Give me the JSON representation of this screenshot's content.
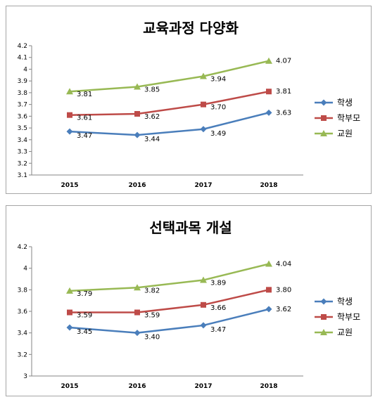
{
  "chart_data": [
    {
      "type": "line",
      "title": "교육과정 다양화",
      "xlabel": "",
      "ylabel": "",
      "x": [
        "2015",
        "2016",
        "2017",
        "2018"
      ],
      "ylim": [
        3.1,
        4.2
      ],
      "yticks": [
        "3.1",
        "3.2",
        "3.3",
        "3.4",
        "3.5",
        "3.6",
        "3.7",
        "3.8",
        "3.9",
        "4",
        "4.1",
        "4.2"
      ],
      "grid": false,
      "legend_position": "right",
      "series": [
        {
          "name": "학생",
          "color": "#4a7ebb",
          "marker": "diamond",
          "values": [
            3.47,
            3.44,
            3.49,
            3.63
          ],
          "labels": [
            "3.47",
            "3.44",
            "3.49",
            "3.63"
          ]
        },
        {
          "name": "학부모",
          "color": "#be4b48",
          "marker": "square",
          "values": [
            3.61,
            3.62,
            3.7,
            3.81
          ],
          "labels": [
            "3.61",
            "3.62",
            "3.70",
            "3.81"
          ]
        },
        {
          "name": "교원",
          "color": "#98b954",
          "marker": "triangle",
          "values": [
            3.81,
            3.85,
            3.94,
            4.07
          ],
          "labels": [
            "3.81",
            "3.85",
            "3.94",
            "4.07"
          ]
        }
      ]
    },
    {
      "type": "line",
      "title": "선택과목 개설",
      "xlabel": "",
      "ylabel": "",
      "x": [
        "2015",
        "2016",
        "2017",
        "2018"
      ],
      "ylim": [
        3,
        4.2
      ],
      "yticks": [
        "3",
        "3.2",
        "3.4",
        "3.6",
        "3.8",
        "4",
        "4.2"
      ],
      "grid": false,
      "legend_position": "right",
      "series": [
        {
          "name": "학생",
          "color": "#4a7ebb",
          "marker": "diamond",
          "values": [
            3.45,
            3.4,
            3.47,
            3.62
          ],
          "labels": [
            "3.45",
            "3.40",
            "3.47",
            "3.62"
          ]
        },
        {
          "name": "학부모",
          "color": "#be4b48",
          "marker": "square",
          "values": [
            3.59,
            3.59,
            3.66,
            3.8
          ],
          "labels": [
            "3.59",
            "3.59",
            "3.66",
            "3.80"
          ]
        },
        {
          "name": "교원",
          "color": "#98b954",
          "marker": "triangle",
          "values": [
            3.79,
            3.82,
            3.89,
            4.04
          ],
          "labels": [
            "3.79",
            "3.82",
            "3.89",
            "4.04"
          ]
        }
      ]
    }
  ]
}
